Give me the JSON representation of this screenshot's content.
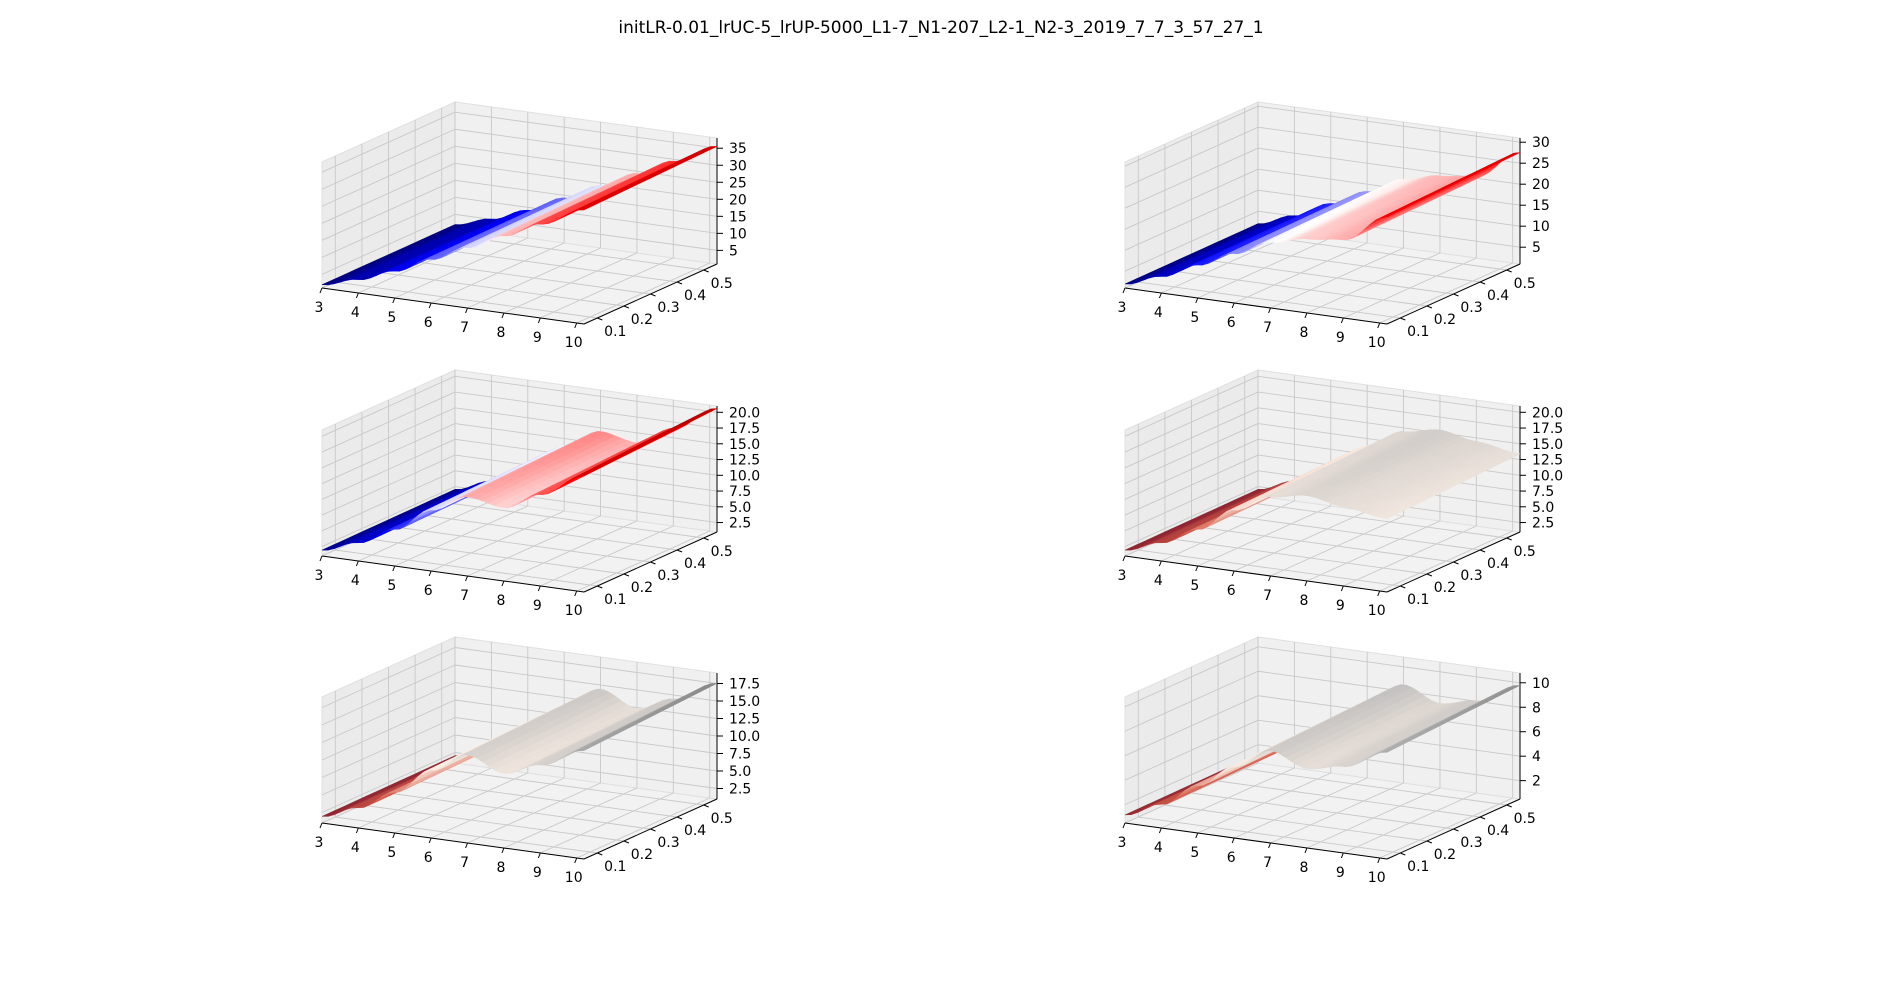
{
  "figure": {
    "title": "initLR-0.01_lrUC-5_lrUP-5000_L1-7_N1-207_L2-1_N2-3_2019_7_7_3_57_27_1"
  },
  "chart_data": [
    {
      "type": "surface3d",
      "panel": "row1-left",
      "colormap": "seismic",
      "x_ticks": [
        "3",
        "4",
        "5",
        "6",
        "7",
        "8",
        "9",
        "10"
      ],
      "y_ticks": [
        "0.1",
        "0.2",
        "0.3",
        "0.4",
        "0.5"
      ],
      "z_ticks": [
        "5",
        "10",
        "15",
        "20",
        "25",
        "30",
        "35"
      ],
      "xlim": [
        3,
        10.2
      ],
      "ylim": [
        0.05,
        0.55
      ],
      "zlim": [
        1,
        38
      ],
      "profile": {
        "x": [
          3,
          4,
          5,
          6,
          7,
          8,
          9,
          10.2
        ],
        "z": [
          2,
          5,
          9,
          14,
          19,
          24,
          29,
          35
        ]
      },
      "y_effect": 0.03,
      "grid": true
    },
    {
      "type": "surface3d",
      "panel": "row1-right",
      "colormap": "seismic",
      "x_ticks": [
        "3",
        "4",
        "5",
        "6",
        "7",
        "8",
        "9",
        "10"
      ],
      "y_ticks": [
        "0.1",
        "0.2",
        "0.3",
        "0.4",
        "0.5"
      ],
      "z_ticks": [
        "5",
        "10",
        "15",
        "20",
        "25",
        "30"
      ],
      "xlim": [
        3,
        10.2
      ],
      "ylim": [
        0.05,
        0.55
      ],
      "zlim": [
        1,
        31
      ],
      "profile": {
        "x": [
          3,
          4,
          5,
          6,
          7,
          8,
          9,
          10.2
        ],
        "z": [
          2,
          5,
          9,
          13,
          17,
          19,
          20,
          27
        ]
      },
      "y_effect": 0.04,
      "grid": true
    },
    {
      "type": "surface3d",
      "panel": "row2-left",
      "colormap": "seismic",
      "x_ticks": [
        "3",
        "4",
        "5",
        "6",
        "7",
        "8",
        "9",
        "10"
      ],
      "y_ticks": [
        "0.1",
        "0.2",
        "0.3",
        "0.4",
        "0.5"
      ],
      "z_ticks": [
        "2.5",
        "5.0",
        "7.5",
        "10.0",
        "12.5",
        "15.0",
        "17.5",
        "20.0"
      ],
      "xlim": [
        3,
        10.2
      ],
      "ylim": [
        0.05,
        0.55
      ],
      "zlim": [
        1,
        21
      ],
      "profile": {
        "x": [
          3,
          4,
          5,
          6,
          7,
          8,
          9,
          10.2
        ],
        "z": [
          2,
          4,
          7,
          11,
          14,
          13,
          16,
          20
        ]
      },
      "y_effect": 0.06,
      "grid": true
    },
    {
      "type": "surface3d",
      "panel": "row2-right",
      "colormap": "RdGy",
      "x_ticks": [
        "3",
        "4",
        "5",
        "6",
        "7",
        "8",
        "9",
        "10"
      ],
      "y_ticks": [
        "0.1",
        "0.2",
        "0.3",
        "0.4",
        "0.5"
      ],
      "z_ticks": [
        "2.5",
        "5.0",
        "7.5",
        "10.0",
        "12.5",
        "15.0",
        "17.5",
        "20.0"
      ],
      "xlim": [
        3,
        10.2
      ],
      "ylim": [
        0.05,
        0.55
      ],
      "zlim": [
        1,
        21
      ],
      "profile": {
        "x": [
          3,
          4,
          5,
          6,
          7,
          8,
          9,
          10.2
        ],
        "z": [
          2,
          4,
          7,
          11,
          14,
          15,
          14,
          13
        ]
      },
      "y_effect": 0.06,
      "grid": true
    },
    {
      "type": "surface3d",
      "panel": "row3-left",
      "colormap": "RdGy",
      "x_ticks": [
        "3",
        "4",
        "5",
        "6",
        "7",
        "8",
        "9",
        "10"
      ],
      "y_ticks": [
        "0.1",
        "0.2",
        "0.3",
        "0.4",
        "0.5"
      ],
      "z_ticks": [
        "2.5",
        "5.0",
        "7.5",
        "10.0",
        "12.5",
        "15.0",
        "17.5"
      ],
      "xlim": [
        3,
        10.2
      ],
      "ylim": [
        0.05,
        0.55
      ],
      "zlim": [
        1,
        19
      ],
      "profile": {
        "x": [
          3,
          4,
          5,
          6,
          7,
          8,
          9,
          10.2
        ],
        "z": [
          2,
          4,
          7,
          11,
          14,
          12,
          14,
          17
        ]
      },
      "y_effect": 0.06,
      "grid": true
    },
    {
      "type": "surface3d",
      "panel": "row3-right",
      "colormap": "RdGy",
      "x_ticks": [
        "3",
        "4",
        "5",
        "6",
        "7",
        "8",
        "9",
        "10"
      ],
      "y_ticks": [
        "0.1",
        "0.2",
        "0.3",
        "0.4",
        "0.5"
      ],
      "z_ticks": [
        "2",
        "4",
        "6",
        "8",
        "10"
      ],
      "xlim": [
        3,
        10.2
      ],
      "ylim": [
        0.05,
        0.55
      ],
      "zlim": [
        0.5,
        10.8
      ],
      "profile": {
        "x": [
          3,
          4,
          5,
          6,
          7,
          8,
          9,
          10.2
        ],
        "z": [
          1.2,
          2.5,
          4.5,
          6.5,
          8.3,
          7.2,
          7.8,
          9.5
        ]
      },
      "y_effect": 0.06,
      "grid": true
    }
  ]
}
